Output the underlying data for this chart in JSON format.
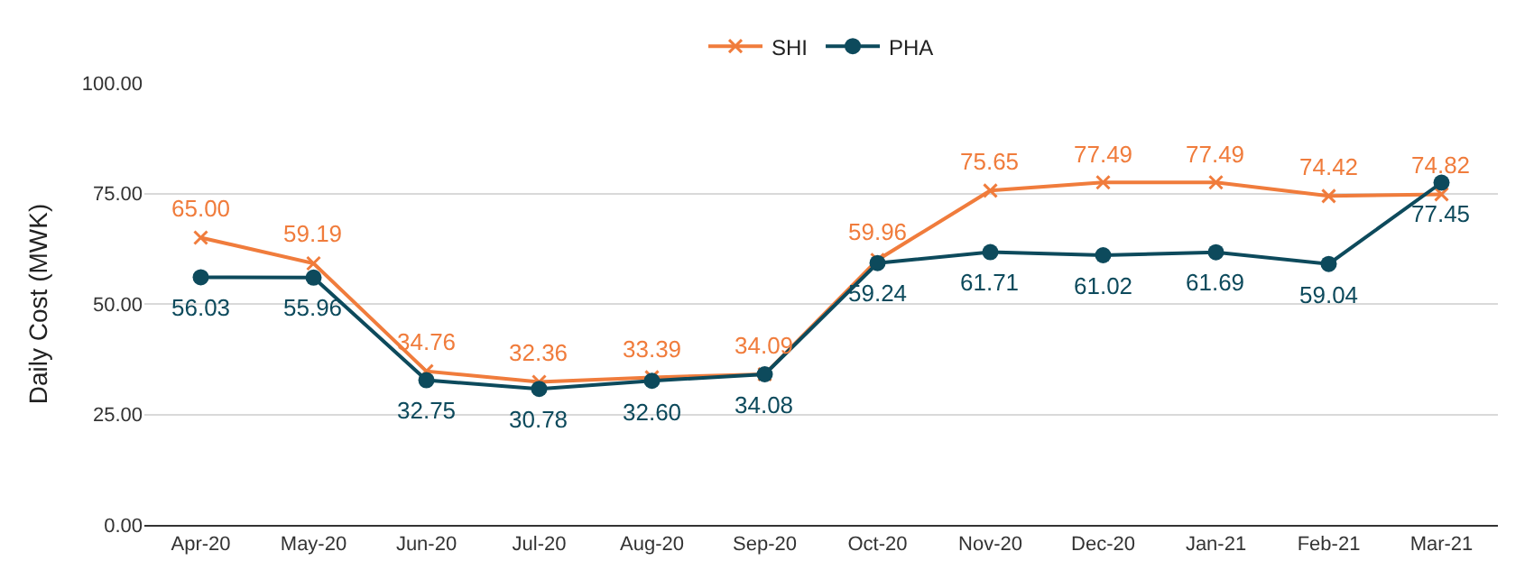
{
  "chart_data": {
    "type": "line",
    "ylabel": "Daily Cost (MWK)",
    "categories": [
      "Apr-20",
      "May-20",
      "Jun-20",
      "Jul-20",
      "Aug-20",
      "Sep-20",
      "Oct-20",
      "Nov-20",
      "Dec-20",
      "Jan-21",
      "Feb-21",
      "Mar-21"
    ],
    "series": [
      {
        "name": "SHI",
        "color": "#f07c3c",
        "marker": "cross",
        "values": [
          65.0,
          59.19,
          34.76,
          32.36,
          33.39,
          34.09,
          59.96,
          75.65,
          77.49,
          77.49,
          74.42,
          74.82
        ],
        "value_labels": [
          "65.00",
          "59.19",
          "34.76",
          "32.36",
          "33.39",
          "34.09",
          "59.96",
          "75.65",
          "77.49",
          "77.49",
          "74.42",
          "74.82"
        ]
      },
      {
        "name": "PHA",
        "color": "#0d4a5c",
        "marker": "circle",
        "values": [
          56.03,
          55.96,
          32.75,
          30.78,
          32.6,
          34.08,
          59.24,
          61.71,
          61.02,
          61.69,
          59.04,
          77.45
        ],
        "value_labels": [
          "56.03",
          "55.96",
          "32.75",
          "30.78",
          "32.60",
          "34.08",
          "59.24",
          "61.71",
          "61.02",
          "61.69",
          "59.04",
          "77.45"
        ]
      }
    ],
    "ylim": [
      0,
      100
    ],
    "yticks": [
      {
        "value": 0,
        "label": "0.00"
      },
      {
        "value": 25,
        "label": "25.00"
      },
      {
        "value": 50,
        "label": "50.00"
      },
      {
        "value": 75,
        "label": "75.00"
      },
      {
        "value": 100,
        "label": "100.00"
      }
    ],
    "grid": "y",
    "legend": "top",
    "line_style": "solid"
  }
}
